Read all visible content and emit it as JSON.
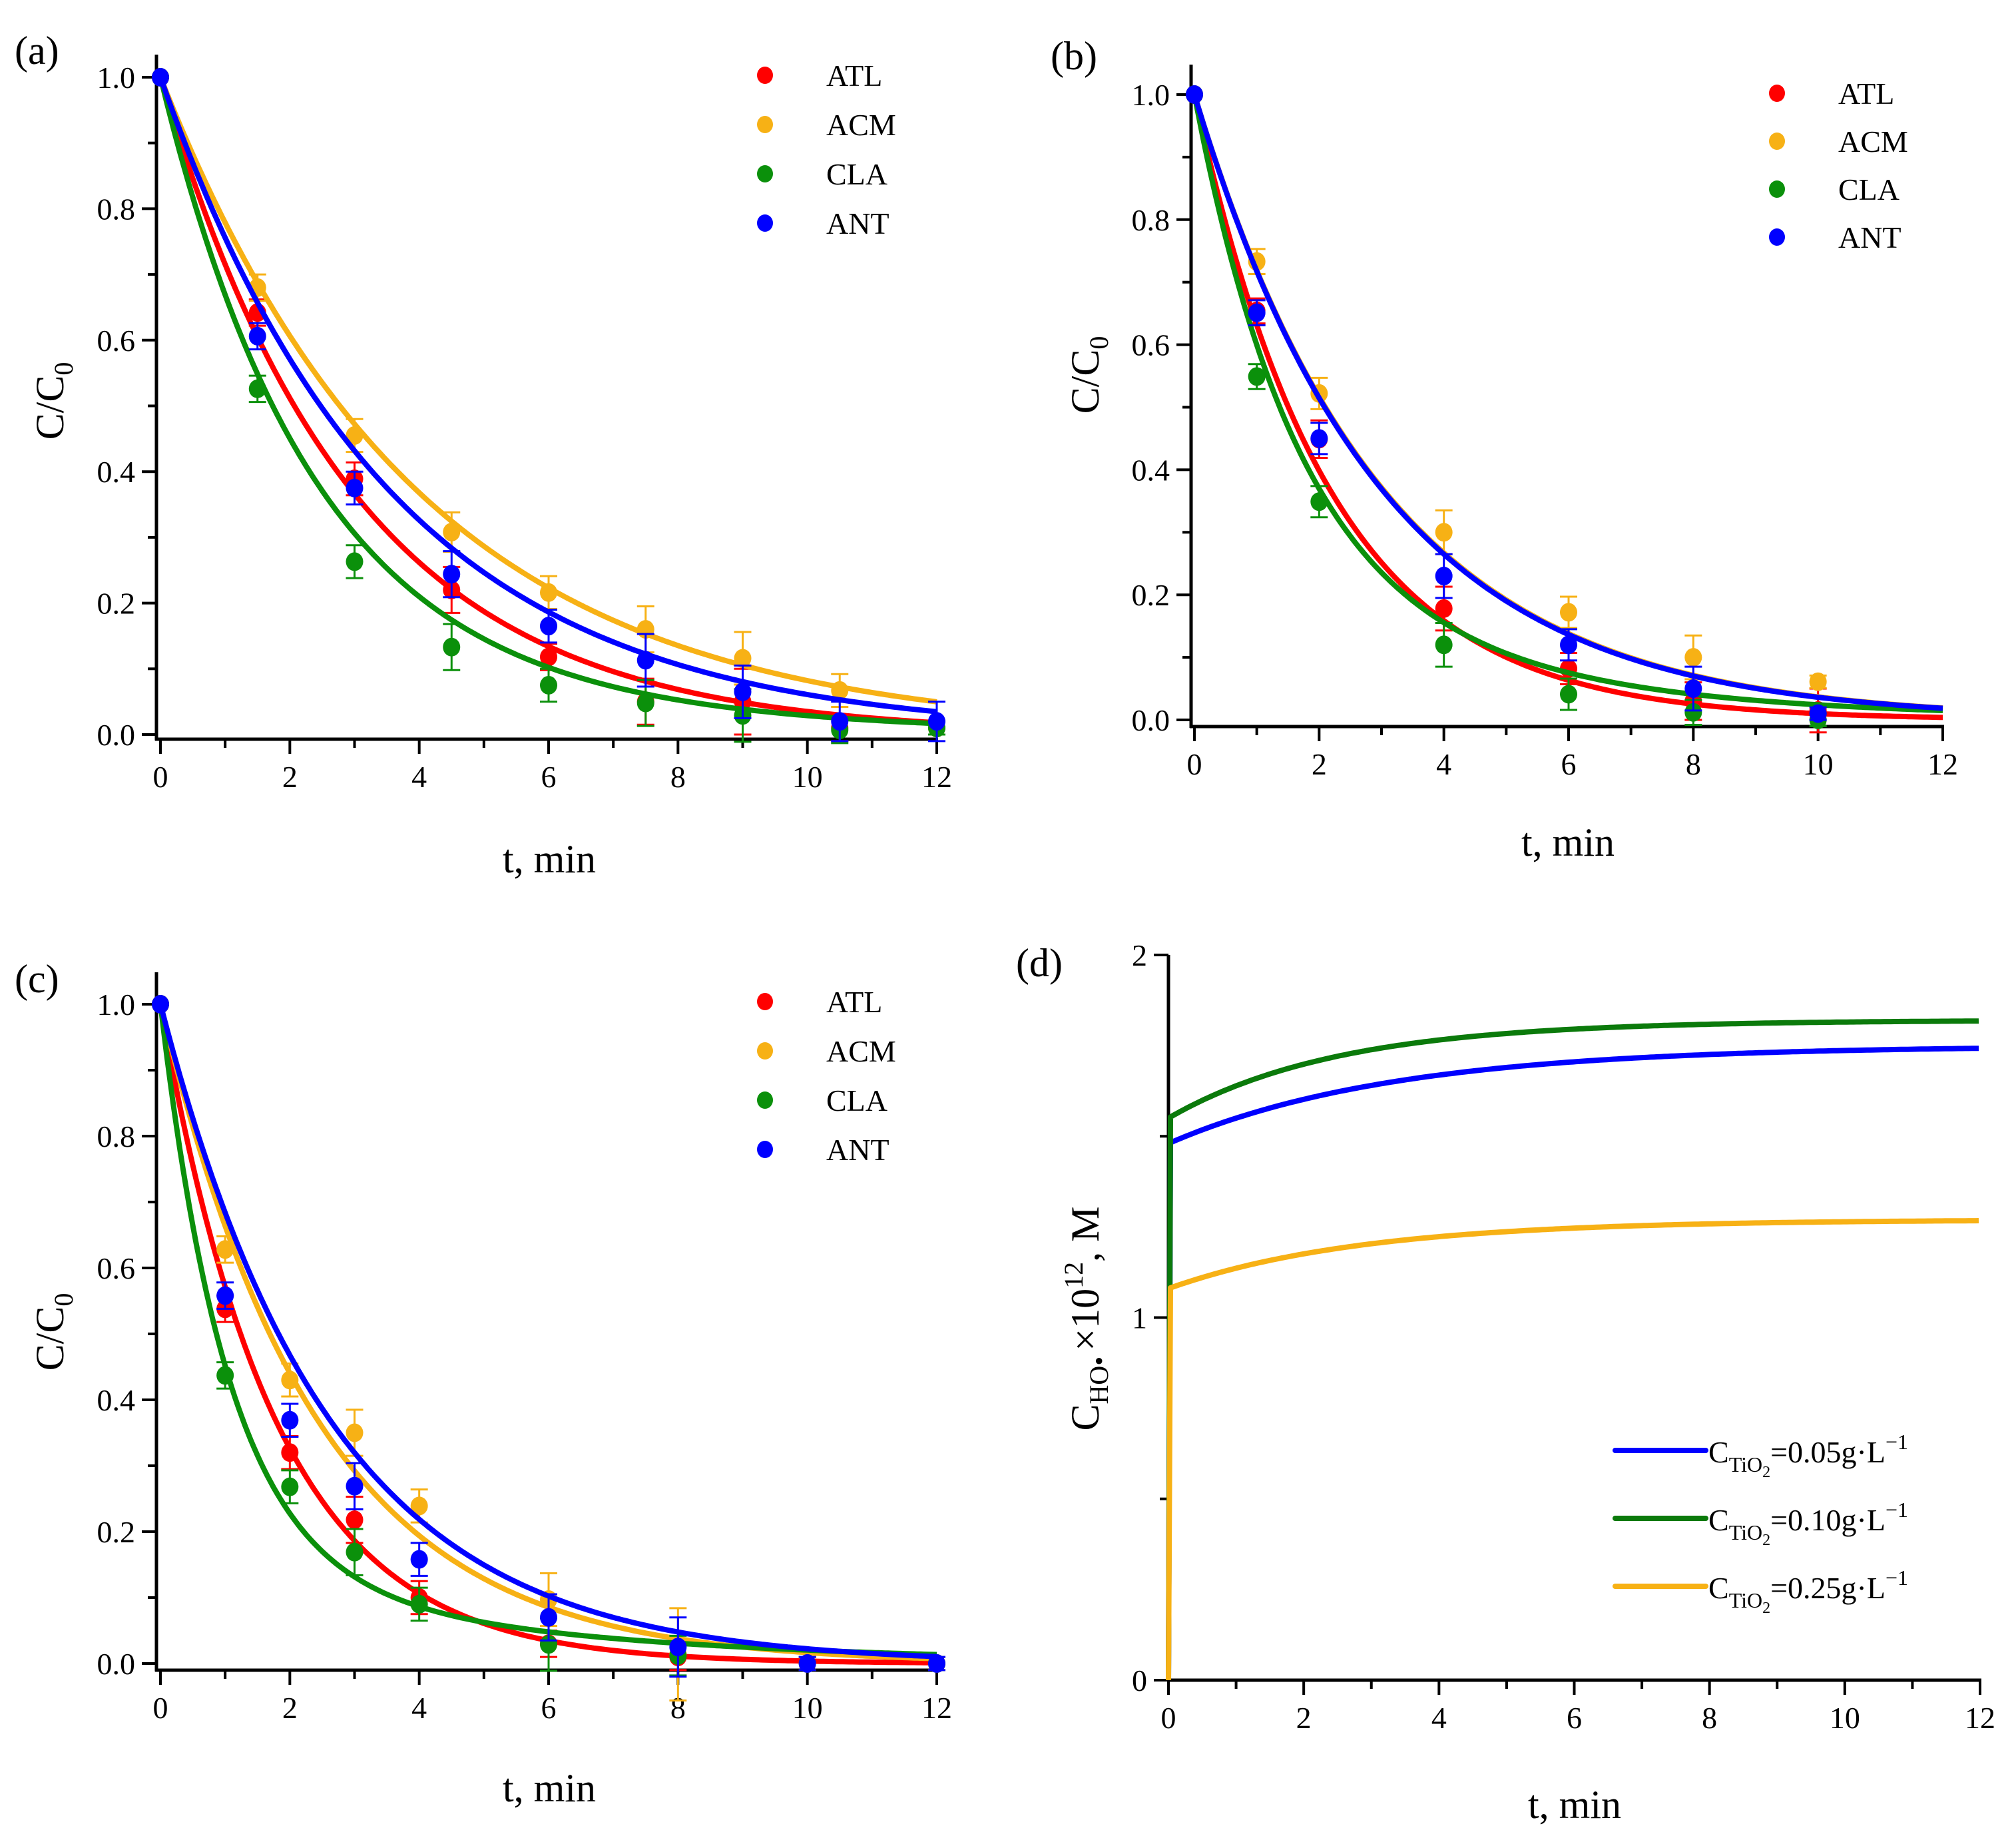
{
  "chart_data": [
    {
      "type": "scatter",
      "panel": "(a)",
      "xlabel": "t, min",
      "ylabel": {
        "main": "C/C",
        "sub": "0"
      },
      "xlim": [
        0,
        12
      ],
      "ylim": [
        -0.01,
        1.03
      ],
      "xticks": [
        0,
        2,
        4,
        6,
        8,
        10,
        12
      ],
      "yticks": [
        0.0,
        0.2,
        0.4,
        0.6,
        0.8,
        1.0
      ],
      "ytick_labels": [
        "0.0",
        "0.2",
        "0.4",
        "0.6",
        "0.8",
        "1.0"
      ],
      "legend_position": "top-right",
      "series": [
        {
          "name": "ATL",
          "color": "#ff0000",
          "x": [
            0,
            1.5,
            3,
            4.5,
            6,
            7.5,
            9,
            10.5,
            12
          ],
          "y": [
            1.0,
            0.642,
            0.389,
            0.22,
            0.118,
            0.05,
            0.05,
            0.01,
            0.01
          ],
          "err": [
            0,
            0.02,
            0.025,
            0.035,
            0.02,
            0.035,
            0.05,
            0.02,
            0.01
          ],
          "fit": {
            "a": 1,
            "k1": 0.335,
            "k2": 0
          }
        },
        {
          "name": "ACM",
          "color": "#f7b115",
          "x": [
            0,
            1.5,
            3,
            4.5,
            6,
            7.5,
            9,
            10.5,
            12
          ],
          "y": [
            1.0,
            0.68,
            0.455,
            0.308,
            0.216,
            0.16,
            0.116,
            0.067,
            0.01
          ],
          "err": [
            0,
            0.02,
            0.025,
            0.03,
            0.025,
            0.035,
            0.04,
            0.025,
            0.01
          ],
          "fit": {
            "a": 1,
            "k1": 0.25,
            "k2": 0
          }
        },
        {
          "name": "CLA",
          "color": "#0b900b",
          "x": [
            0,
            1.5,
            3,
            4.5,
            6,
            7.5,
            9,
            10.5,
            12
          ],
          "y": [
            1.0,
            0.526,
            0.263,
            0.133,
            0.075,
            0.048,
            0.029,
            0.007,
            0.01
          ],
          "err": [
            0,
            0.02,
            0.025,
            0.035,
            0.025,
            0.035,
            0.04,
            0.02,
            0.01
          ],
          "fit": {
            "a": 0.9,
            "k1": 0.43,
            "k2": 0.18
          }
        },
        {
          "name": "ANT",
          "color": "#0000ff",
          "x": [
            0,
            1.5,
            3,
            4.5,
            6,
            7.5,
            9,
            10.5,
            12
          ],
          "y": [
            1.0,
            0.606,
            0.375,
            0.244,
            0.165,
            0.113,
            0.065,
            0.02,
            0.02
          ],
          "err": [
            0,
            0.02,
            0.025,
            0.035,
            0.025,
            0.04,
            0.04,
            0.03,
            0.03
          ],
          "fit": {
            "a": 1,
            "k1": 0.28,
            "k2": 0
          }
        }
      ]
    },
    {
      "type": "scatter",
      "panel": "(b)",
      "xlabel": "t, min",
      "ylabel": {
        "main": "C/C",
        "sub": "0"
      },
      "xlim": [
        0,
        12
      ],
      "ylim": [
        -0.01,
        1.048
      ],
      "xticks": [
        0,
        2,
        4,
        6,
        8,
        10,
        12
      ],
      "yticks": [
        0.0,
        0.2,
        0.4,
        0.6,
        0.8,
        1.0
      ],
      "ytick_labels": [
        "0.0",
        "0.2",
        "0.4",
        "0.6",
        "0.8",
        "1.0"
      ],
      "legend_position": "top-right",
      "series": [
        {
          "name": "ATL",
          "color": "#ff0000",
          "x": [
            0,
            1,
            2,
            4,
            6,
            8,
            10
          ],
          "y": [
            1.0,
            0.654,
            0.449,
            0.178,
            0.082,
            0.03,
            0.015
          ],
          "err": [
            0,
            0.02,
            0.03,
            0.035,
            0.025,
            0.03,
            0.035
          ],
          "fit": {
            "a": 1,
            "k1": 0.46,
            "k2": 0
          }
        },
        {
          "name": "ACM",
          "color": "#f7b115",
          "x": [
            0,
            1,
            2,
            4,
            6,
            8,
            10
          ],
          "y": [
            1.0,
            0.733,
            0.522,
            0.3,
            0.172,
            0.1,
            0.061
          ],
          "err": [
            0,
            0.02,
            0.025,
            0.035,
            0.025,
            0.035,
            0.01
          ],
          "fit": {
            "a": 1,
            "k1": 0.33,
            "k2": 0
          }
        },
        {
          "name": "CLA",
          "color": "#0b900b",
          "x": [
            0,
            1,
            2,
            4,
            6,
            8,
            10
          ],
          "y": [
            1.0,
            0.549,
            0.349,
            0.12,
            0.041,
            0.012,
            0.0
          ],
          "err": [
            0,
            0.02,
            0.025,
            0.035,
            0.025,
            0.02,
            0.01
          ],
          "fit": {
            "a": 0.8,
            "k1": 0.6,
            "k2": 0.22
          }
        },
        {
          "name": "ANT",
          "color": "#0000ff",
          "x": [
            0,
            1,
            2,
            4,
            6,
            8,
            10
          ],
          "y": [
            1.0,
            0.651,
            0.45,
            0.23,
            0.12,
            0.05,
            0.01
          ],
          "err": [
            0,
            0.02,
            0.025,
            0.035,
            0.025,
            0.035,
            0.01
          ],
          "fit": {
            "a": 1,
            "k1": 0.332,
            "k2": 0
          }
        }
      ]
    },
    {
      "type": "scatter",
      "panel": "(c)",
      "xlabel": "t, min",
      "ylabel": {
        "main": "C/C",
        "sub": "0"
      },
      "xlim": [
        0,
        12
      ],
      "ylim": [
        -0.01,
        1.048
      ],
      "xticks": [
        0,
        2,
        4,
        6,
        8,
        10,
        12
      ],
      "yticks": [
        0.0,
        0.2,
        0.4,
        0.6,
        0.8,
        1.0
      ],
      "ytick_labels": [
        "0.0",
        "0.2",
        "0.4",
        "0.6",
        "0.8",
        "1.0"
      ],
      "legend_position": "top-right",
      "series": [
        {
          "name": "ATL",
          "color": "#ff0000",
          "x": [
            0,
            1,
            2,
            3,
            4,
            6,
            8,
            10,
            12
          ],
          "y": [
            1.0,
            0.538,
            0.32,
            0.218,
            0.1,
            0.03,
            0.01,
            0.0,
            0.0
          ],
          "err": [
            0,
            0.02,
            0.025,
            0.035,
            0.025,
            0.02,
            0.02,
            0.01,
            0.01
          ],
          "fit": {
            "a": 1,
            "k1": 0.56,
            "k2": 0
          }
        },
        {
          "name": "ACM",
          "color": "#f7b115",
          "x": [
            0,
            1,
            2,
            3,
            4,
            6,
            8,
            10,
            12
          ],
          "y": [
            1.0,
            0.628,
            0.43,
            0.35,
            0.239,
            0.097,
            0.014,
            0.0,
            0.0
          ],
          "err": [
            0,
            0.02,
            0.025,
            0.035,
            0.025,
            0.04,
            0.07,
            0.01,
            0.01
          ],
          "fit": {
            "a": 1,
            "k1": 0.41,
            "k2": 0
          }
        },
        {
          "name": "CLA",
          "color": "#0b900b",
          "x": [
            0,
            1,
            2,
            3,
            4,
            6,
            8,
            10,
            12
          ],
          "y": [
            1.0,
            0.437,
            0.268,
            0.169,
            0.09,
            0.029,
            0.012,
            0.0,
            0.0
          ],
          "err": [
            0,
            0.02,
            0.025,
            0.035,
            0.025,
            0.04,
            0.03,
            0.01,
            0.01
          ],
          "fit": {
            "a": 0.85,
            "k1": 0.95,
            "k2": 0.2
          }
        },
        {
          "name": "ANT",
          "color": "#0000ff",
          "x": [
            0,
            1,
            2,
            3,
            4,
            6,
            8,
            10,
            12
          ],
          "y": [
            1.0,
            0.558,
            0.369,
            0.269,
            0.158,
            0.07,
            0.025,
            0.0,
            0.0
          ],
          "err": [
            0,
            0.02,
            0.025,
            0.035,
            0.025,
            0.035,
            0.045,
            0.01,
            0.01
          ],
          "fit": {
            "a": 1,
            "k1": 0.38,
            "k2": 0
          }
        }
      ]
    },
    {
      "type": "line",
      "panel": "(d)",
      "xlabel": "t, min",
      "ylabel": {
        "main": "C",
        "sub": "HO•",
        "mid": "×10",
        "sup": "12",
        "rest": ", M"
      },
      "xlim": [
        0,
        12
      ],
      "ylim": [
        0,
        2
      ],
      "xticks": [
        0,
        2,
        4,
        6,
        8,
        10,
        12
      ],
      "yticks": [
        0,
        1,
        2
      ],
      "ytick_labels": [
        "0",
        "1",
        "2"
      ],
      "legend_position": "bottom-right",
      "series": [
        {
          "name": "CTiO2=0.05g·L−1",
          "label": {
            "main": "C",
            "sub": "TiO",
            "sub2": "2",
            "rest": "=0.05g·L",
            "sup": "−1"
          },
          "color": "#0000ff",
          "model": {
            "plateau": 1.75,
            "amp": 0.27,
            "k": 0.3
          }
        },
        {
          "name": "CTiO2=0.10g·L−1",
          "label": {
            "main": "C",
            "sub": "TiO",
            "sub2": "2",
            "rest": "=0.10g·L",
            "sup": "−1"
          },
          "color": "#0b7a0b",
          "model": {
            "plateau": 1.82,
            "amp": 0.27,
            "k": 0.4
          }
        },
        {
          "name": "CTiO2=0.25g·L−1",
          "label": {
            "main": "C",
            "sub": "TiO",
            "sub2": "2",
            "rest": "=0.25g·L",
            "sup": "−1"
          },
          "color": "#f7b115",
          "model": {
            "plateau": 1.27,
            "amp": 0.19,
            "k": 0.35
          }
        }
      ]
    }
  ]
}
